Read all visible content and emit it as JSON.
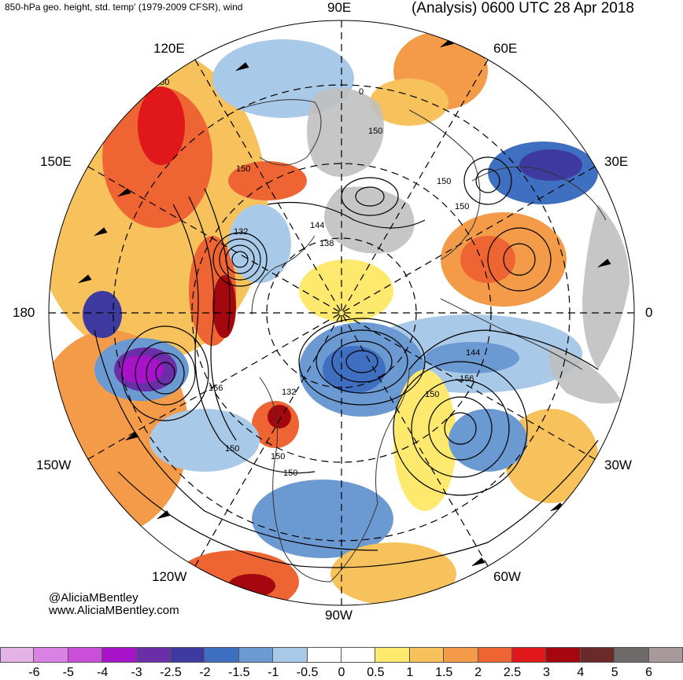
{
  "header": {
    "title": "850-hPa geo. height, std. temp' (1979-2009 CFSR), wind",
    "valid": "(Analysis) 0600 UTC 28 Apr 2018"
  },
  "map": {
    "projection": "north polar stereographic",
    "longitude_labels": {
      "e90": "90E",
      "e60": "60E",
      "e30": "30E",
      "zero": "0",
      "w30": "30W",
      "w60": "60W",
      "w90": "90W",
      "w120": "120W",
      "w150": "150W",
      "d180": "180",
      "e150": "150E",
      "e120": "120E"
    },
    "contour_labels": [
      "150",
      "150",
      "150",
      "150",
      "150",
      "150",
      "144",
      "138",
      "132",
      "156",
      "144",
      "156",
      "150",
      "132",
      "150",
      "150",
      "0"
    ],
    "colors": {
      "land_gray": "#c0c0c0",
      "coastline": "#333333",
      "contour": "#000000"
    }
  },
  "credits": {
    "handle": "@AliciaMBentley",
    "site": "www.AliciaMBentley.com"
  },
  "colorbar": {
    "ticks": [
      "-6",
      "-5",
      "-4",
      "-3",
      "-2.5",
      "-2",
      "-1.5",
      "-1",
      "-0.5",
      "0",
      "0.5",
      "1",
      "1.5",
      "2",
      "2.5",
      "3",
      "4",
      "5",
      "6"
    ],
    "colors": [
      "#e3b3e6",
      "#d982e3",
      "#c94fd9",
      "#a713c9",
      "#6a2ea6",
      "#3e3aa0",
      "#3f6fc0",
      "#6b99d1",
      "#a8c9e8",
      "#ffffff",
      "#ffffff",
      "#fde96e",
      "#f7c25c",
      "#f39b48",
      "#ee6432",
      "#e0171b",
      "#a4070d",
      "#6b2a2a",
      "#6f6a6a",
      "#a89a9a"
    ]
  }
}
